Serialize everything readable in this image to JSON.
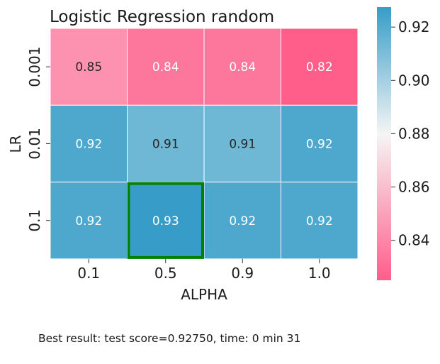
{
  "chart_data": {
    "type": "heatmap",
    "title": "Logistic Regression random",
    "xlabel": "ALPHA",
    "ylabel": "LR",
    "x_categories": [
      "0.1",
      "0.5",
      "0.9",
      "1.0"
    ],
    "y_categories": [
      "0.001",
      "0.01",
      "0.1"
    ],
    "values": [
      [
        0.85,
        0.84,
        0.84,
        0.82
      ],
      [
        0.92,
        0.91,
        0.91,
        0.92
      ],
      [
        0.92,
        0.93,
        0.92,
        0.92
      ]
    ],
    "cell_labels": [
      [
        "0.85",
        "0.84",
        "0.84",
        "0.82"
      ],
      [
        "0.92",
        "0.91",
        "0.91",
        "0.92"
      ],
      [
        "0.92",
        "0.93",
        "0.92",
        "0.92"
      ]
    ],
    "highlight_cell": {
      "row": 2,
      "col": 1,
      "color": "#008000"
    },
    "colorbar": {
      "min": 0.825,
      "max": 0.9275,
      "ticks": [
        "0.84",
        "0.86",
        "0.88",
        "0.90",
        "0.92"
      ],
      "low_color": "#ff5d8a",
      "mid_color": "#f5f5f5",
      "high_color": "#379dc8"
    }
  },
  "footer": {
    "text": "Best result: test score=0.92750, time: 0 min 31"
  }
}
